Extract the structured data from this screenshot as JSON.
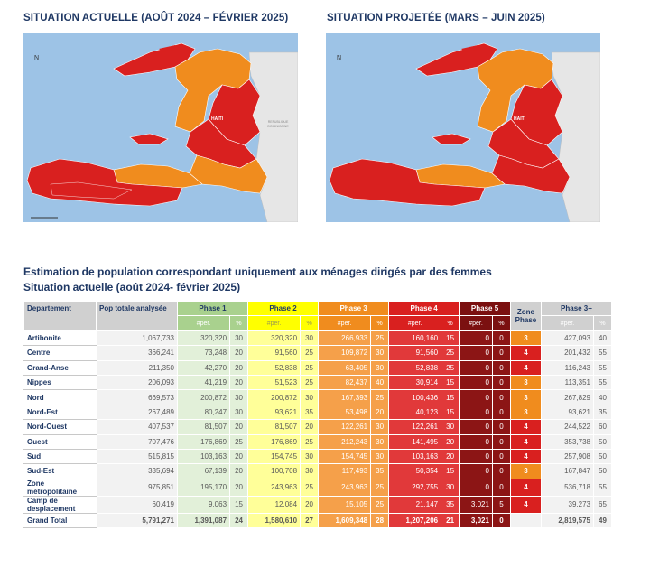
{
  "maps": {
    "current_title": "SITUATION ACTUELLE (AOÛT 2024 – FÉVRIER 2025)",
    "projected_title": "SITUATION PROJETÉE (MARS – JUIN 2025)",
    "country_label": "HAITI",
    "neighbor_label": "REPUBLIQUE DOMINICAINE",
    "north_label": "N",
    "colors": {
      "phase3": "#f08c1e",
      "phase4": "#d9201f",
      "sea": "#9dc3e6",
      "land": "#e8e8e8"
    }
  },
  "section": {
    "title_line1": "Estimation de population correspondant uniquement aux ménages dirigés par des femmes",
    "title_line2": "Situation actuelle (août 2024- février 2025)"
  },
  "table": {
    "headers": {
      "departement": "Departement",
      "pop_totale": "Pop totale analysée",
      "phase1": "Phase 1",
      "phase2": "Phase 2",
      "phase3": "Phase 3",
      "phase4": "Phase 4",
      "phase5": "Phase 5",
      "zone_phase": "Zone Phase",
      "phase3plus": "Phase 3+",
      "per": "#per.",
      "pct": "%"
    },
    "rows": [
      {
        "dept": "Artibonite",
        "pop": "1,067,733",
        "p1": "320,320",
        "p1p": "30",
        "p2": "320,320",
        "p2p": "30",
        "p3": "266,933",
        "p3p": "25",
        "p4": "160,160",
        "p4p": "15",
        "p5": "0",
        "p5p": "0",
        "zone": "3",
        "p3plus": "427,093",
        "p3plusp": "40"
      },
      {
        "dept": "Centre",
        "pop": "366,241",
        "p1": "73,248",
        "p1p": "20",
        "p2": "91,560",
        "p2p": "25",
        "p3": "109,872",
        "p3p": "30",
        "p4": "91,560",
        "p4p": "25",
        "p5": "0",
        "p5p": "0",
        "zone": "4",
        "p3plus": "201,432",
        "p3plusp": "55"
      },
      {
        "dept": "Grand-Anse",
        "pop": "211,350",
        "p1": "42,270",
        "p1p": "20",
        "p2": "52,838",
        "p2p": "25",
        "p3": "63,405",
        "p3p": "30",
        "p4": "52,838",
        "p4p": "25",
        "p5": "0",
        "p5p": "0",
        "zone": "4",
        "p3plus": "116,243",
        "p3plusp": "55"
      },
      {
        "dept": "Nippes",
        "pop": "206,093",
        "p1": "41,219",
        "p1p": "20",
        "p2": "51,523",
        "p2p": "25",
        "p3": "82,437",
        "p3p": "40",
        "p4": "30,914",
        "p4p": "15",
        "p5": "0",
        "p5p": "0",
        "zone": "3",
        "p3plus": "113,351",
        "p3plusp": "55"
      },
      {
        "dept": "Nord",
        "pop": "669,573",
        "p1": "200,872",
        "p1p": "30",
        "p2": "200,872",
        "p2p": "30",
        "p3": "167,393",
        "p3p": "25",
        "p4": "100,436",
        "p4p": "15",
        "p5": "0",
        "p5p": "0",
        "zone": "3",
        "p3plus": "267,829",
        "p3plusp": "40"
      },
      {
        "dept": "Nord-Est",
        "pop": "267,489",
        "p1": "80,247",
        "p1p": "30",
        "p2": "93,621",
        "p2p": "35",
        "p3": "53,498",
        "p3p": "20",
        "p4": "40,123",
        "p4p": "15",
        "p5": "0",
        "p5p": "0",
        "zone": "3",
        "p3plus": "93,621",
        "p3plusp": "35"
      },
      {
        "dept": "Nord-Ouest",
        "pop": "407,537",
        "p1": "81,507",
        "p1p": "20",
        "p2": "81,507",
        "p2p": "20",
        "p3": "122,261",
        "p3p": "30",
        "p4": "122,261",
        "p4p": "30",
        "p5": "0",
        "p5p": "0",
        "zone": "4",
        "p3plus": "244,522",
        "p3plusp": "60"
      },
      {
        "dept": "Ouest",
        "pop": "707,476",
        "p1": "176,869",
        "p1p": "25",
        "p2": "176,869",
        "p2p": "25",
        "p3": "212,243",
        "p3p": "30",
        "p4": "141,495",
        "p4p": "20",
        "p5": "0",
        "p5p": "0",
        "zone": "4",
        "p3plus": "353,738",
        "p3plusp": "50"
      },
      {
        "dept": "Sud",
        "pop": "515,815",
        "p1": "103,163",
        "p1p": "20",
        "p2": "154,745",
        "p2p": "30",
        "p3": "154,745",
        "p3p": "30",
        "p4": "103,163",
        "p4p": "20",
        "p5": "0",
        "p5p": "0",
        "zone": "4",
        "p3plus": "257,908",
        "p3plusp": "50"
      },
      {
        "dept": "Sud-Est",
        "pop": "335,694",
        "p1": "67,139",
        "p1p": "20",
        "p2": "100,708",
        "p2p": "30",
        "p3": "117,493",
        "p3p": "35",
        "p4": "50,354",
        "p4p": "15",
        "p5": "0",
        "p5p": "0",
        "zone": "3",
        "p3plus": "167,847",
        "p3plusp": "50"
      },
      {
        "dept": "Zone métropolitaine",
        "pop": "975,851",
        "p1": "195,170",
        "p1p": "20",
        "p2": "243,963",
        "p2p": "25",
        "p3": "243,963",
        "p3p": "25",
        "p4": "292,755",
        "p4p": "30",
        "p5": "0",
        "p5p": "0",
        "zone": "4",
        "p3plus": "536,718",
        "p3plusp": "55"
      },
      {
        "dept": "Camp de desplacement",
        "pop": "60,419",
        "p1": "9,063",
        "p1p": "15",
        "p2": "12,084",
        "p2p": "20",
        "p3": "15,105",
        "p3p": "25",
        "p4": "21,147",
        "p4p": "35",
        "p5": "3,021",
        "p5p": "5",
        "zone": "4",
        "p3plus": "39,273",
        "p3plusp": "65"
      }
    ],
    "total": {
      "dept": "Grand Total",
      "pop": "5,791,271",
      "p1": "1,391,087",
      "p1p": "24",
      "p2": "1,580,610",
      "p2p": "27",
      "p3": "1,609,348",
      "p3p": "28",
      "p4": "1,207,206",
      "p4p": "21",
      "p5": "3,021",
      "p5p": "0",
      "zone": "",
      "p3plus": "2,819,575",
      "p3plusp": "49"
    }
  }
}
